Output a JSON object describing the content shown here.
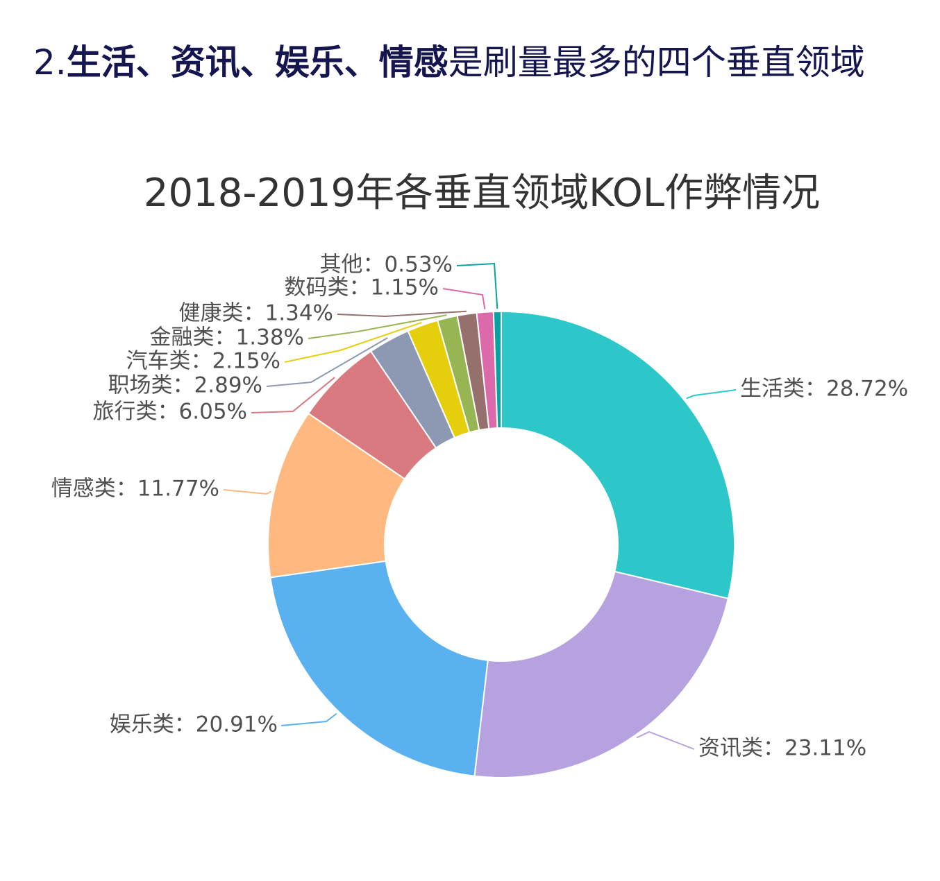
{
  "headline": {
    "number": "2.",
    "bold_text": "生活、资讯、娱乐、情感",
    "regular_text": "是刷量最多的四个垂直领域"
  },
  "chart_data": {
    "type": "pie",
    "variant": "donut",
    "title": "2018-2019年各垂直领域KOL作弊情况",
    "label_separator": "：",
    "slices": [
      {
        "name": "生活类",
        "value": 28.72,
        "label": "28.72%",
        "color": "#2ec7c9"
      },
      {
        "name": "资讯类",
        "value": 23.11,
        "label": "23.11%",
        "color": "#b6a2de"
      },
      {
        "name": "娱乐类",
        "value": 20.91,
        "label": "20.91%",
        "color": "#5ab1ef"
      },
      {
        "name": "情感类",
        "value": 11.77,
        "label": "11.77%",
        "color": "#ffb980"
      },
      {
        "name": "旅行类",
        "value": 6.05,
        "label": "6.05%",
        "color": "#d87a80"
      },
      {
        "name": "职场类",
        "value": 2.89,
        "label": "2.89%",
        "color": "#8d98b3"
      },
      {
        "name": "汽车类",
        "value": 2.15,
        "label": "2.15%",
        "color": "#e5cf0d"
      },
      {
        "name": "金融类",
        "value": 1.38,
        "label": "1.38%",
        "color": "#97b552"
      },
      {
        "name": "健康类",
        "value": 1.34,
        "label": "1.34%",
        "color": "#95706d"
      },
      {
        "name": "数码类",
        "value": 1.15,
        "label": "1.15%",
        "color": "#dc69aa"
      },
      {
        "name": "其他",
        "value": 0.53,
        "label": "0.53%",
        "color": "#07a2a4"
      }
    ],
    "legend": false
  }
}
